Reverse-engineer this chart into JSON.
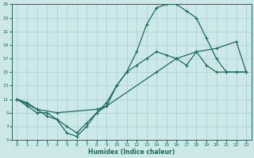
{
  "xlabel": "Humidex (Indice chaleur)",
  "bg_color": "#cce8e8",
  "grid_color": "#aacfcf",
  "line_color": "#1a6b5a",
  "xlim": [
    -0.5,
    23.5
  ],
  "ylim": [
    5,
    25
  ],
  "yticks": [
    5,
    7,
    9,
    11,
    13,
    15,
    17,
    19,
    21,
    23,
    25
  ],
  "xticks": [
    0,
    1,
    2,
    3,
    4,
    5,
    6,
    7,
    8,
    9,
    10,
    11,
    12,
    13,
    14,
    15,
    16,
    17,
    18,
    19,
    20,
    21,
    22,
    23
  ],
  "line1_x": [
    0,
    1,
    2,
    3,
    4,
    5,
    6,
    7,
    8,
    9,
    10,
    11,
    12,
    13,
    14,
    15,
    16,
    17,
    18,
    19,
    20,
    21,
    22,
    23
  ],
  "line1_y": [
    11,
    10,
    9,
    9,
    8,
    6,
    5.5,
    7,
    9,
    10,
    13,
    15,
    16,
    17,
    18,
    17.5,
    17,
    16,
    18,
    16,
    15,
    15,
    15,
    15
  ],
  "line2_x": [
    0,
    1,
    2,
    3,
    4,
    5,
    6,
    7,
    8,
    9,
    10,
    11,
    12,
    13,
    14,
    15,
    16,
    17,
    18,
    19,
    20,
    21,
    22,
    23
  ],
  "line2_y": [
    11,
    10.5,
    9.5,
    8.5,
    8,
    7,
    6,
    7.5,
    9,
    10.5,
    13,
    15,
    18,
    22,
    24.5,
    25,
    25,
    24,
    23,
    20,
    17,
    15,
    15,
    15
  ],
  "line3_x": [
    0,
    2,
    4,
    8,
    9,
    14,
    16,
    18,
    20,
    22,
    23
  ],
  "line3_y": [
    11,
    9.5,
    9,
    9.5,
    10,
    15,
    17,
    18,
    18.5,
    19.5,
    15
  ]
}
